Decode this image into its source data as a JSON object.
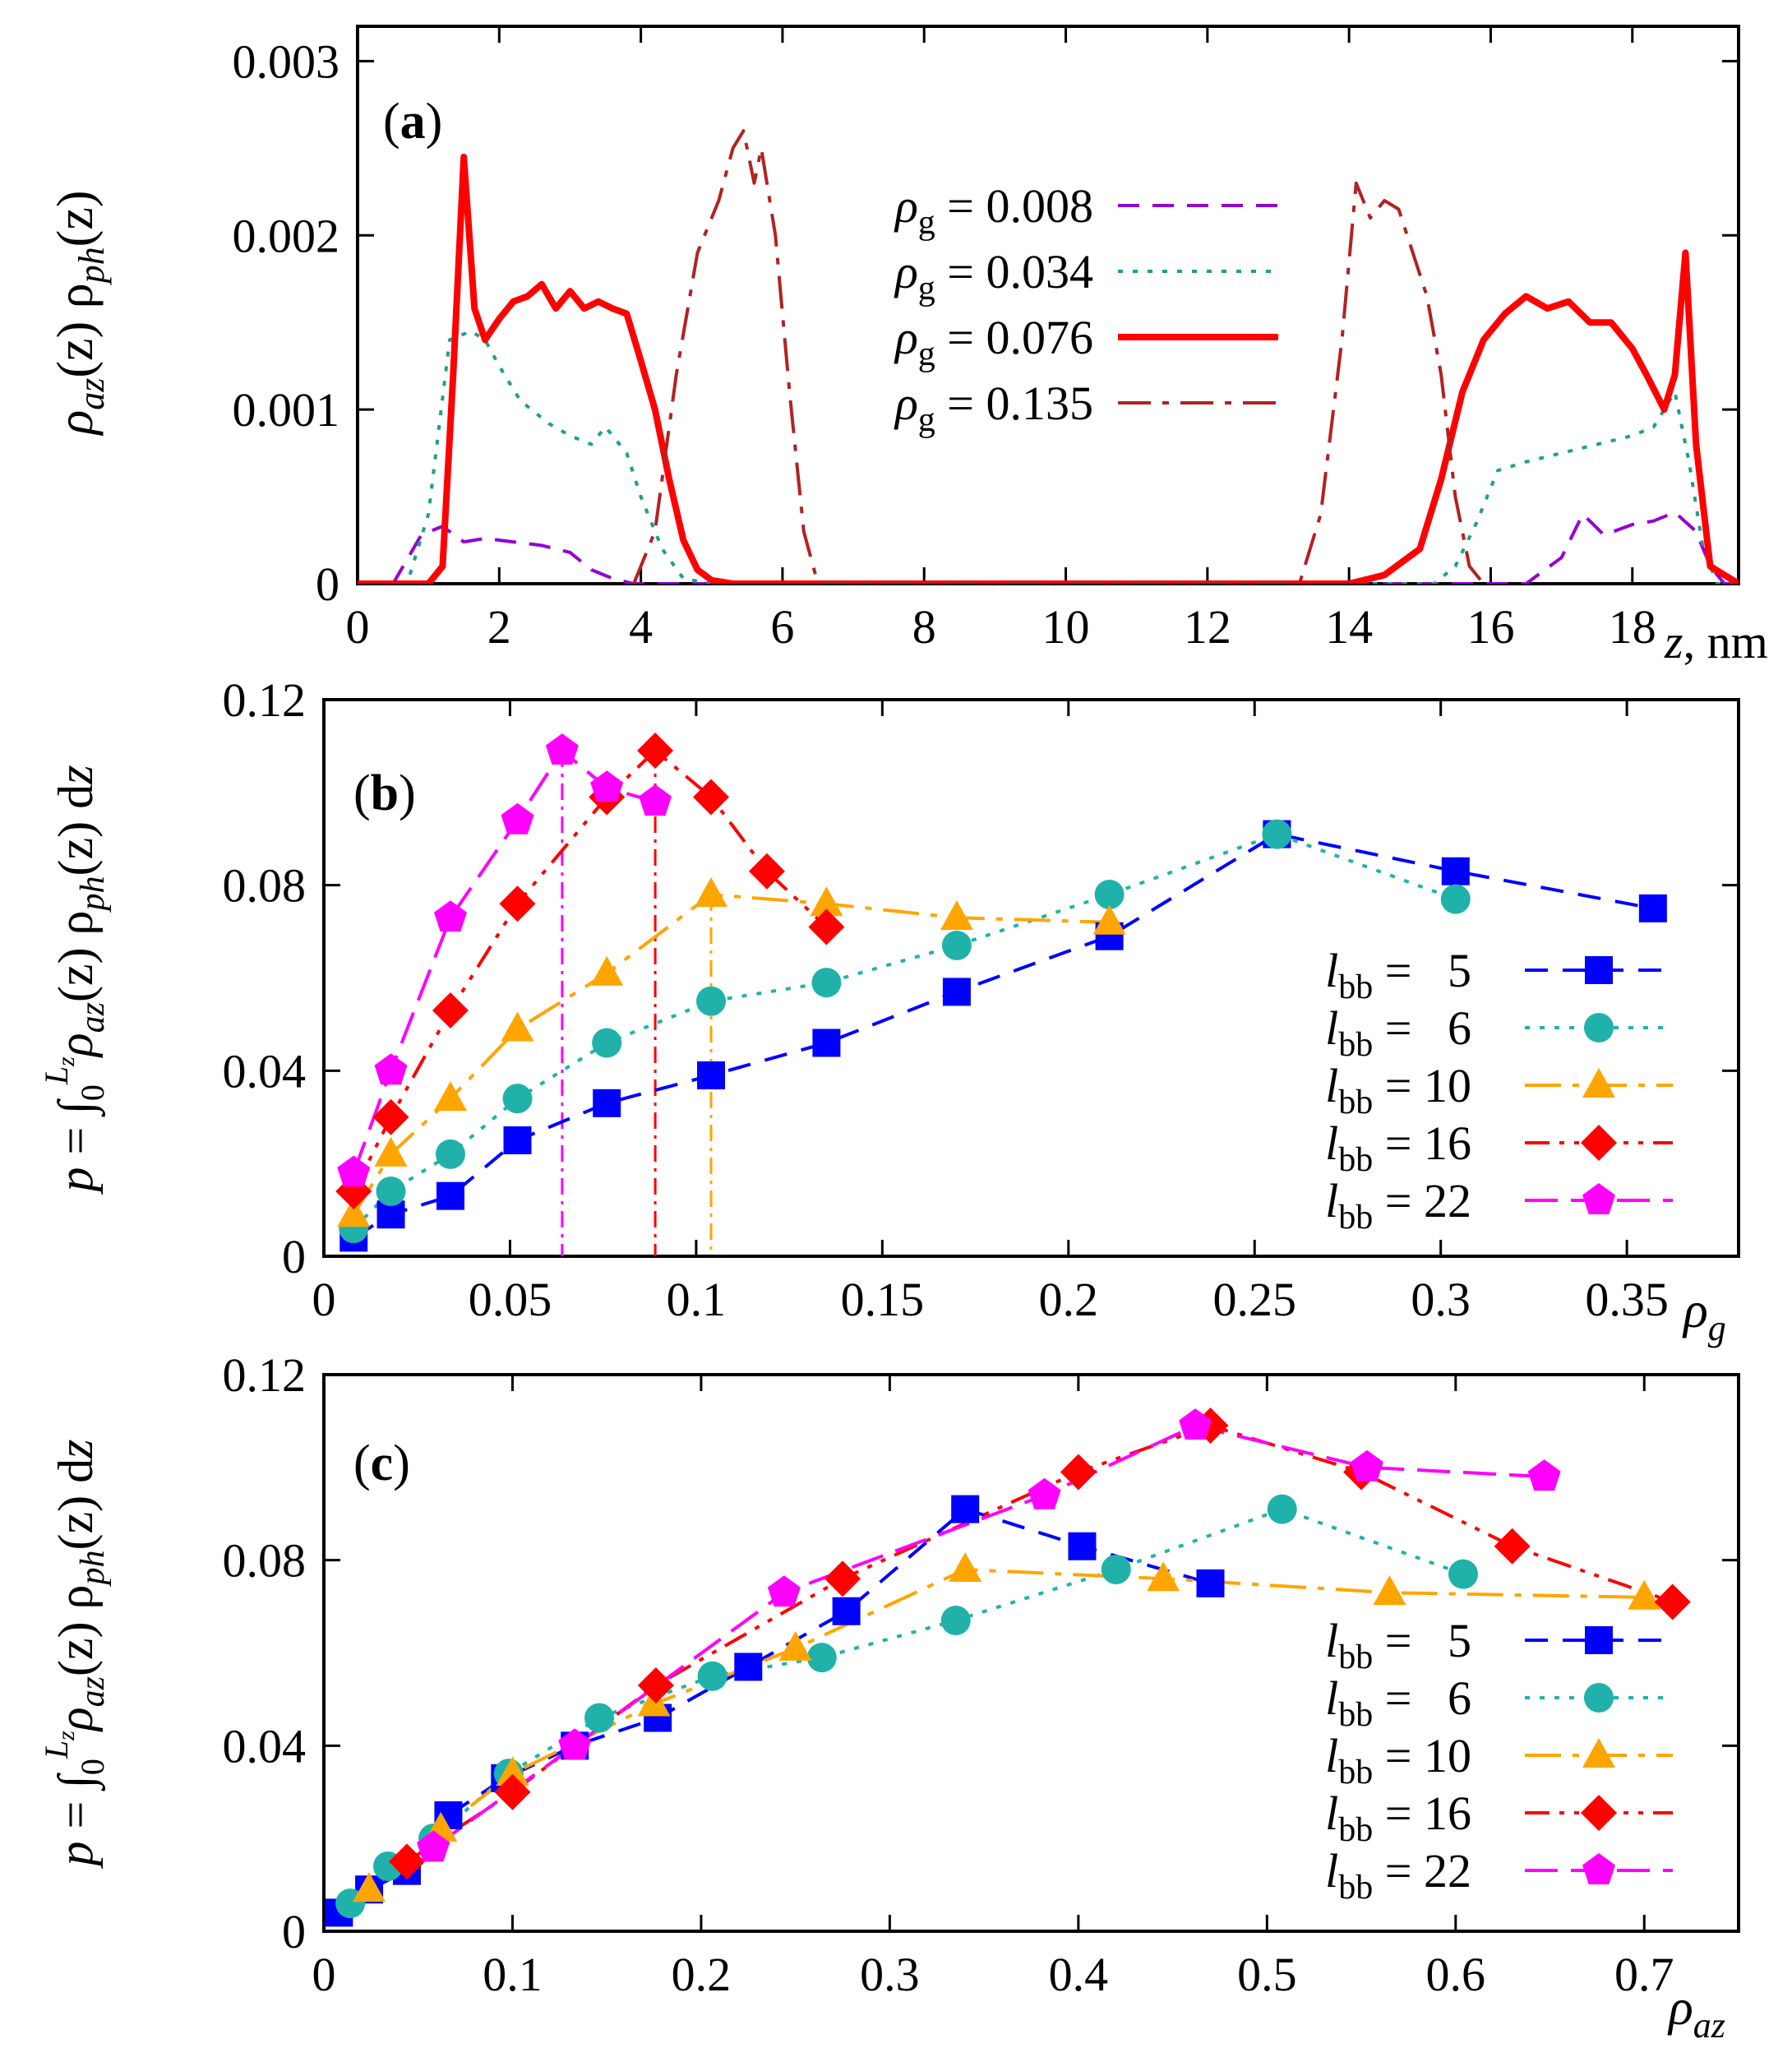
{
  "chart_data": [
    {
      "type": "line",
      "panel": "(a)",
      "xlabel": "z, nm",
      "ylabel": "ρaz(z) ρph(z)",
      "xlim": [
        0,
        19.5
      ],
      "ylim": [
        0,
        0.0032
      ],
      "xticks": [
        "0",
        "2",
        "4",
        "6",
        "8",
        "10",
        "12",
        "14",
        "16",
        "18"
      ],
      "yticks": [
        "0",
        "0.001",
        "0.002",
        "0.003"
      ],
      "legend_position": "top-center",
      "series": [
        {
          "name": "ρg = 0.008",
          "value": "0.008",
          "color": "#9400d3",
          "dash": "dashed",
          "x": [
            0,
            0.5,
            0.9,
            1.2,
            1.5,
            1.8,
            2.2,
            2.6,
            3.0,
            3.3,
            3.6,
            3.9,
            4.1,
            13.0,
            14.0,
            15.0,
            16.5,
            17.0,
            17.3,
            17.6,
            18.0,
            18.3,
            18.6,
            18.9,
            19.1,
            19.3,
            19.5
          ],
          "y": [
            0,
            0,
            0.00028,
            0.00033,
            0.00024,
            0.00026,
            0.00024,
            0.00022,
            0.00018,
            8e-05,
            3e-05,
            0,
            0,
            0,
            0,
            0,
            0,
            0.00015,
            0.0004,
            0.00028,
            0.00034,
            0.00036,
            0.00041,
            0.0003,
            0.0001,
            0,
            0
          ]
        },
        {
          "name": "ρg = 0.034",
          "value": "0.034",
          "color": "#1e9e8e",
          "dash": "dotted",
          "x": [
            0,
            0.7,
            1.0,
            1.3,
            1.6,
            1.8,
            2.0,
            2.3,
            2.7,
            3.0,
            3.3,
            3.5,
            3.8,
            4.0,
            4.3,
            4.6,
            5.0,
            15.2,
            15.5,
            15.8,
            16.1,
            16.5,
            17.0,
            17.5,
            18.0,
            18.3,
            18.6,
            18.8,
            19.0,
            19.2,
            19.5
          ],
          "y": [
            0,
            0,
            0.0004,
            0.0014,
            0.00145,
            0.0014,
            0.00125,
            0.00105,
            0.00092,
            0.00085,
            0.0008,
            0.0009,
            0.00075,
            0.0005,
            0.0002,
            3e-05,
            0,
            0,
            0.0001,
            0.00035,
            0.00065,
            0.0007,
            0.00075,
            0.0008,
            0.00085,
            0.0009,
            0.0011,
            0.0007,
            0.0002,
            0,
            0
          ]
        },
        {
          "name": "ρg = 0.076",
          "value": "0.076",
          "color": "#ff0000",
          "dash": "solid",
          "x": [
            0,
            1.0,
            1.2,
            1.35,
            1.5,
            1.65,
            1.8,
            2.0,
            2.2,
            2.4,
            2.6,
            2.8,
            3.0,
            3.2,
            3.4,
            3.6,
            3.8,
            4.0,
            4.2,
            4.4,
            4.6,
            4.8,
            5.0,
            5.3,
            14.0,
            14.5,
            15.0,
            15.3,
            15.6,
            15.9,
            16.2,
            16.5,
            16.8,
            17.1,
            17.4,
            17.7,
            18.0,
            18.2,
            18.45,
            18.6,
            18.75,
            18.9,
            19.1,
            19.5
          ],
          "y": [
            0,
            0,
            0.0001,
            0.0012,
            0.00245,
            0.00158,
            0.0014,
            0.00152,
            0.00162,
            0.00165,
            0.00172,
            0.00158,
            0.00168,
            0.00158,
            0.00162,
            0.00158,
            0.00155,
            0.00128,
            0.001,
            0.0006,
            0.00025,
            8e-05,
            2e-05,
            0,
            0,
            5e-05,
            0.0002,
            0.0006,
            0.0011,
            0.0014,
            0.00155,
            0.00165,
            0.00158,
            0.00162,
            0.0015,
            0.0015,
            0.00135,
            0.0012,
            0.001,
            0.0012,
            0.0019,
            0.0008,
            0.0001,
            0
          ]
        },
        {
          "name": "ρg = 0.135",
          "value": "0.135",
          "color": "#b22222",
          "dash": "dash-dot",
          "x": [
            3.9,
            4.2,
            4.5,
            4.8,
            5.1,
            5.3,
            5.45,
            5.6,
            5.7,
            5.9,
            6.1,
            6.3,
            6.5,
            13.3,
            13.6,
            13.9,
            14.1,
            14.3,
            14.5,
            14.7,
            14.9,
            15.1,
            15.3,
            15.5,
            15.7,
            15.9
          ],
          "y": [
            0,
            0.0003,
            0.0012,
            0.0019,
            0.0022,
            0.0025,
            0.0026,
            0.0023,
            0.0025,
            0.002,
            0.0011,
            0.0003,
            0,
            0,
            0.0004,
            0.0014,
            0.0023,
            0.0021,
            0.0022,
            0.00215,
            0.0019,
            0.00165,
            0.0012,
            0.0005,
            0.0001,
            0
          ]
        }
      ]
    },
    {
      "type": "line",
      "panel": "(b)",
      "xlabel": "ρg",
      "ylabel": "p = ∫0Lz ρaz(z) ρph(z) dz",
      "xlim": [
        0,
        0.38
      ],
      "ylim": [
        0,
        0.12
      ],
      "xticks": [
        "0",
        "0.05",
        "0.1",
        "0.15",
        "0.2",
        "0.25",
        "0.3",
        "0.35"
      ],
      "yticks": [
        "0",
        "0.04",
        "0.08",
        "0.12"
      ],
      "legend_position": "bottom-right",
      "series": [
        {
          "name": "lbb = 5",
          "value": "5",
          "marker": "square",
          "color": "#0000ff",
          "x": [
            0.008,
            0.018,
            0.034,
            0.052,
            0.076,
            0.104,
            0.135,
            0.17,
            0.211,
            0.256,
            0.304,
            0.357
          ],
          "y": [
            0.004,
            0.009,
            0.013,
            0.025,
            0.033,
            0.039,
            0.046,
            0.057,
            0.069,
            0.091,
            0.083,
            0.075
          ]
        },
        {
          "name": "lbb = 6",
          "value": "6",
          "marker": "circle",
          "color": "#20b2aa",
          "x": [
            0.008,
            0.018,
            0.034,
            0.052,
            0.076,
            0.104,
            0.135,
            0.17,
            0.211,
            0.256,
            0.304
          ],
          "y": [
            0.006,
            0.014,
            0.022,
            0.034,
            0.046,
            0.055,
            0.059,
            0.067,
            0.078,
            0.091,
            0.077
          ]
        },
        {
          "name": "lbb = 10",
          "value": "10",
          "marker": "triangle",
          "color": "#ffa500",
          "x": [
            0.008,
            0.018,
            0.034,
            0.052,
            0.076,
            0.104,
            0.135,
            0.17,
            0.211
          ],
          "y": [
            0.009,
            0.022,
            0.034,
            0.049,
            0.061,
            0.078,
            0.076,
            0.073,
            0.072
          ]
        },
        {
          "name": "lbb = 16",
          "value": "16",
          "marker": "diamond",
          "color": "#ff0000",
          "x": [
            0.008,
            0.018,
            0.034,
            0.052,
            0.076,
            0.089,
            0.104,
            0.119,
            0.135
          ],
          "y": [
            0.014,
            0.03,
            0.053,
            0.076,
            0.099,
            0.109,
            0.099,
            0.083,
            0.071
          ]
        },
        {
          "name": "lbb = 22",
          "value": "22",
          "marker": "pentagon",
          "color": "#ff00ff",
          "x": [
            0.008,
            0.018,
            0.034,
            0.052,
            0.064,
            0.076,
            0.089
          ],
          "y": [
            0.018,
            0.04,
            0.073,
            0.094,
            0.109,
            0.101,
            0.098
          ]
        }
      ],
      "annotations": [
        {
          "type": "vertical-line",
          "x": 0.064,
          "color": "#ff00ff"
        },
        {
          "type": "vertical-line",
          "x": 0.089,
          "color": "#ff0000"
        },
        {
          "type": "vertical-line",
          "x": 0.104,
          "color": "#ffa500"
        }
      ]
    },
    {
      "type": "line",
      "panel": "(c)",
      "xlabel": "ρaz",
      "ylabel": "p = ∫0Lz ρaz(z) ρph(z) dz",
      "xlim": [
        0,
        0.75
      ],
      "ylim": [
        0,
        0.12
      ],
      "xticks": [
        "0",
        "0.1",
        "0.2",
        "0.3",
        "0.4",
        "0.5",
        "0.6",
        "0.7"
      ],
      "yticks": [
        "0",
        "0.04",
        "0.08",
        "0.12"
      ],
      "legend_position": "bottom-right",
      "series": [
        {
          "name": "lbb = 5",
          "value": "5",
          "marker": "square",
          "color": "#0000ff",
          "x": [
            0.008,
            0.024,
            0.044,
            0.066,
            0.096,
            0.133,
            0.177,
            0.225,
            0.277,
            0.34,
            0.402,
            0.47
          ],
          "y": [
            0.004,
            0.009,
            0.013,
            0.025,
            0.033,
            0.04,
            0.046,
            0.057,
            0.069,
            0.091,
            0.083,
            0.075
          ]
        },
        {
          "name": "lbb = 6",
          "value": "6",
          "marker": "circle",
          "color": "#20b2aa",
          "x": [
            0.014,
            0.034,
            0.058,
            0.098,
            0.146,
            0.206,
            0.264,
            0.335,
            0.42,
            0.508,
            0.604
          ],
          "y": [
            0.006,
            0.014,
            0.02,
            0.034,
            0.046,
            0.055,
            0.059,
            0.067,
            0.078,
            0.091,
            0.077
          ]
        },
        {
          "name": "lbb = 10",
          "value": "10",
          "marker": "triangle",
          "color": "#ffa500",
          "x": [
            0.024,
            0.062,
            0.1,
            0.175,
            0.25,
            0.34,
            0.445,
            0.565,
            0.7
          ],
          "y": [
            0.009,
            0.022,
            0.034,
            0.049,
            0.061,
            0.078,
            0.076,
            0.073,
            0.072
          ]
        },
        {
          "name": "lbb = 16",
          "value": "16",
          "marker": "diamond",
          "color": "#ff0000",
          "x": [
            0.044,
            0.1,
            0.176,
            0.275,
            0.4,
            0.47,
            0.55,
            0.63,
            0.715
          ],
          "y": [
            0.015,
            0.03,
            0.053,
            0.076,
            0.099,
            0.109,
            0.099,
            0.083,
            0.071
          ]
        },
        {
          "name": "lbb = 22",
          "value": "22",
          "marker": "pentagon",
          "color": "#ff00ff",
          "x": [
            0.058,
            0.133,
            0.244,
            0.382,
            0.462,
            0.553,
            0.647
          ],
          "y": [
            0.018,
            0.04,
            0.073,
            0.094,
            0.109,
            0.1,
            0.098
          ]
        }
      ]
    }
  ],
  "panel_a": {
    "label": "a",
    "ylabel_main": "ρ",
    "ylabel_sub": "az",
    "ylabel_mid": "(z) ρ",
    "ylabel_sub2": "ph",
    "ylabel_end": "(z)",
    "xunit_var": "z",
    "xunit": ", nm",
    "legend_sym": "ρ",
    "legend_sub": "g",
    "legend_eq": "= "
  },
  "panel_b": {
    "label": "b",
    "xlabel_sym": "ρ",
    "xlabel_sub": "g"
  },
  "panel_c": {
    "label": "c",
    "xlabel_sym": "ρ",
    "xlabel_sub": "az"
  },
  "legend_bc": {
    "sym": "l",
    "sub": "bb",
    "eq": " = "
  },
  "p_axis": {
    "p": "p",
    "eq": " = ∫",
    "lim_lower": "0",
    "lim_upper": "L",
    "lim_upper_sub": "z",
    "rho": "ρ",
    "sub1": "az",
    "mid": "(z) ρ",
    "sub2": "ph",
    "end": "(z) d",
    "dz": "z"
  }
}
